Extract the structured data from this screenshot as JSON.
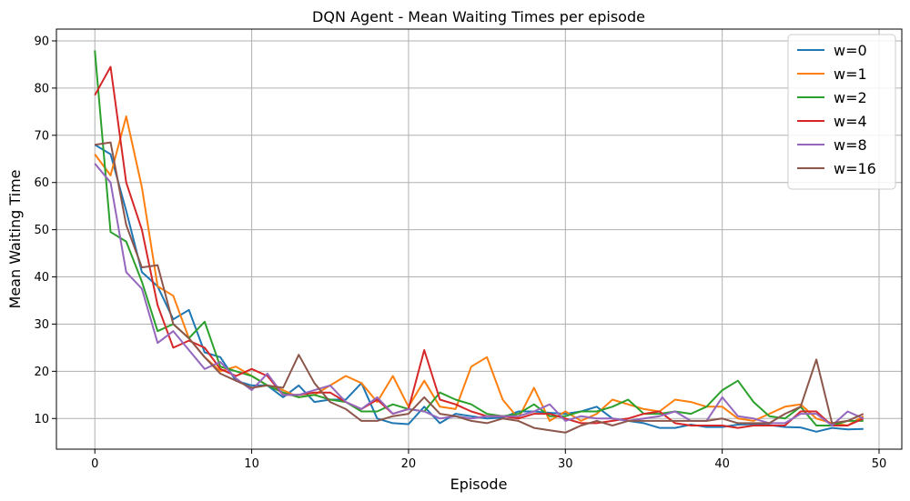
{
  "chart_data": {
    "type": "line",
    "title": "DQN Agent - Mean Waiting Times per episode",
    "xlabel": "Episode",
    "ylabel": "Mean Waiting Time",
    "xlim": [
      -2.45,
      51.45
    ],
    "ylim": [
      3.5,
      92.5
    ],
    "xticks": [
      0,
      10,
      20,
      30,
      40,
      50
    ],
    "yticks": [
      10,
      20,
      30,
      40,
      50,
      60,
      70,
      80,
      90
    ],
    "grid": true,
    "legend_position": "top-right",
    "x": [
      0,
      1,
      2,
      3,
      4,
      5,
      6,
      7,
      8,
      9,
      10,
      11,
      12,
      13,
      14,
      15,
      16,
      17,
      18,
      19,
      20,
      21,
      22,
      23,
      24,
      25,
      26,
      27,
      28,
      29,
      30,
      31,
      32,
      33,
      34,
      35,
      36,
      37,
      38,
      39,
      40,
      41,
      42,
      43,
      44,
      45,
      46,
      47,
      48,
      49
    ],
    "series": [
      {
        "name": "w=0",
        "color": "#1f77b4",
        "values": [
          68,
          66,
          54,
          41,
          38,
          31,
          33,
          24,
          23,
          18,
          17,
          17,
          14.5,
          17,
          13.5,
          14,
          14,
          17.5,
          10,
          9,
          8.8,
          12.5,
          9,
          11,
          10.5,
          10,
          10.2,
          11.5,
          11.5,
          11.2,
          11,
          11.5,
          12.5,
          10,
          9.5,
          9,
          8,
          8,
          8.7,
          8.2,
          8.2,
          8.7,
          8.8,
          8.6,
          8.2,
          8.1,
          7.2,
          8,
          7.7,
          7.8
        ]
      },
      {
        "name": "w=1",
        "color": "#ff7f0e",
        "values": [
          66,
          61.5,
          74,
          59,
          38,
          36,
          27,
          23,
          20,
          21,
          19,
          17,
          16,
          14.5,
          15,
          17,
          19,
          17.5,
          13.5,
          19,
          12.5,
          18,
          12.5,
          12,
          21,
          23,
          14,
          10,
          16.5,
          9.5,
          11.5,
          9.5,
          11,
          14,
          13,
          12,
          11.5,
          14,
          13.5,
          12.5,
          12.5,
          10,
          9.5,
          11,
          12.5,
          13,
          10,
          9,
          8.5,
          10.5
        ]
      },
      {
        "name": "w=2",
        "color": "#2ca02c",
        "values": [
          88,
          49.5,
          47.5,
          39,
          28.5,
          30,
          27,
          30.5,
          21,
          20,
          19,
          17,
          15.5,
          14.5,
          15,
          14,
          13.5,
          11.5,
          11.5,
          13,
          12,
          11.5,
          15.5,
          14,
          13,
          11,
          10.5,
          11,
          13,
          10.5,
          10.5,
          11.5,
          11.5,
          12.5,
          14,
          11,
          11,
          11.5,
          11,
          12.5,
          16,
          18,
          13.5,
          10.5,
          10,
          12.5,
          8.5,
          8.5,
          9.5,
          9.5
        ]
      },
      {
        "name": "w=4",
        "color": "#d62728",
        "values": [
          78.5,
          84.5,
          60,
          50,
          34,
          25,
          26.5,
          25,
          20.5,
          19,
          20.5,
          19,
          15,
          15,
          15.5,
          15.5,
          13.5,
          12,
          14,
          11,
          12,
          24.5,
          14,
          13,
          11.5,
          10.5,
          10.5,
          10,
          11,
          11,
          10,
          9,
          9,
          9.5,
          10,
          11,
          11.5,
          9,
          8.5,
          8.5,
          8.5,
          8,
          8.5,
          8.5,
          8.5,
          11.5,
          11.5,
          8.5,
          8.5,
          10
        ]
      },
      {
        "name": "w=8",
        "color": "#9467bd",
        "values": [
          64,
          60,
          41,
          37.5,
          26,
          28.5,
          24.5,
          20.5,
          22,
          18.5,
          16,
          19.5,
          15,
          15,
          16,
          17,
          13.5,
          12,
          14.5,
          11,
          12,
          11.5,
          10,
          10.5,
          10,
          10.5,
          10.5,
          10.5,
          11.5,
          13,
          9.5,
          10.5,
          10,
          10,
          9.5,
          10,
          10.5,
          11.5,
          9.5,
          9.5,
          14.5,
          10.5,
          10,
          9,
          9,
          11,
          11,
          8.5,
          11.5,
          10
        ]
      },
      {
        "name": "w=16",
        "color": "#8c564b",
        "values": [
          68,
          68.5,
          51,
          42,
          42.5,
          30,
          27,
          23,
          19.5,
          18,
          16.5,
          17,
          16.5,
          23.5,
          17.5,
          13.5,
          12,
          9.5,
          9.5,
          10.5,
          11,
          14.5,
          11,
          10.5,
          9.5,
          9,
          10,
          9.5,
          8,
          7.5,
          7,
          8.5,
          9.5,
          8.5,
          9.5,
          9.5,
          9.5,
          9.5,
          9.5,
          9.5,
          10,
          9,
          9,
          9,
          11,
          12.5,
          22.5,
          9,
          9.5,
          11
        ]
      }
    ]
  }
}
